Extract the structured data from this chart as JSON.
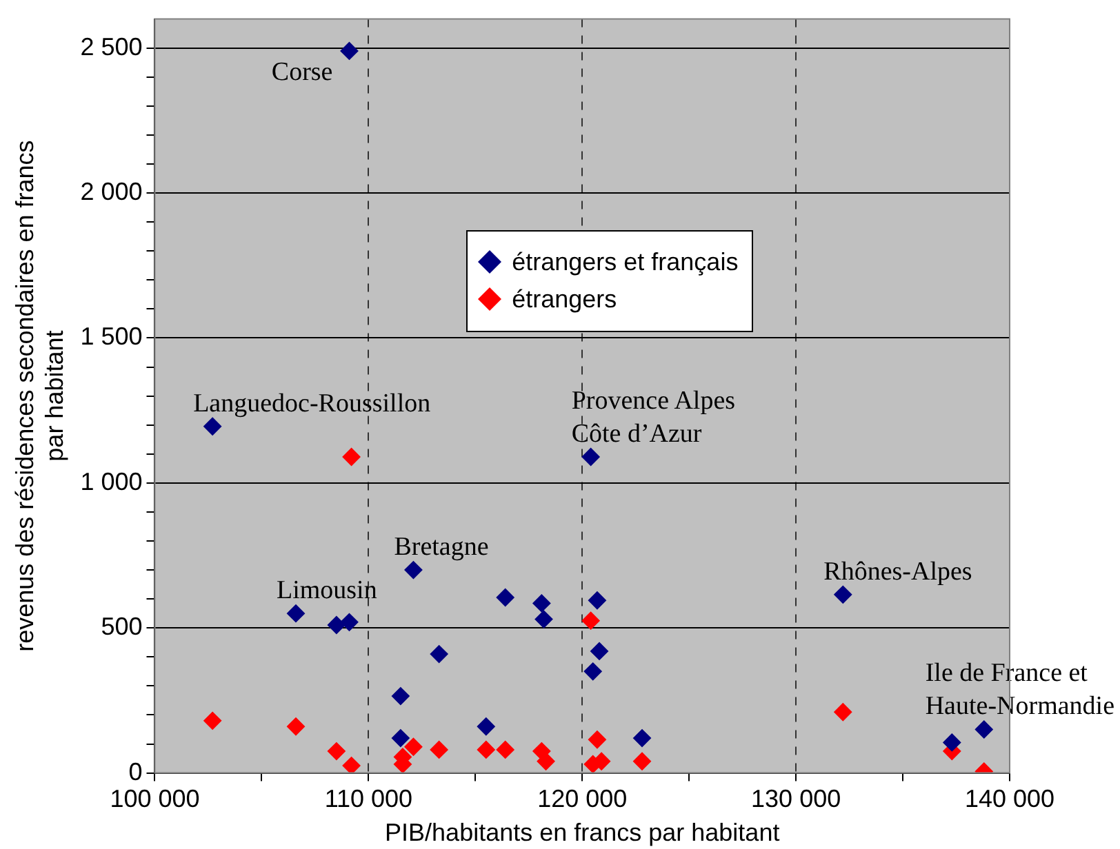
{
  "chart_data": {
    "type": "scatter",
    "xlabel": "PIB/habitants en francs par habitant",
    "ylabel": "revenus des résidences secondaires en francs par habitant",
    "xlim": [
      100000,
      140000
    ],
    "xticks": [
      {
        "value": 100000,
        "label": "100 000"
      },
      {
        "value": 105000,
        "label": null
      },
      {
        "value": 110000,
        "label": "110 000"
      },
      {
        "value": 115000,
        "label": null
      },
      {
        "value": 120000,
        "label": "120 000"
      },
      {
        "value": 125000,
        "label": null
      },
      {
        "value": 130000,
        "label": "130 000"
      },
      {
        "value": 135000,
        "label": null
      },
      {
        "value": 140000,
        "label": "140 000"
      }
    ],
    "ylim": [
      0,
      2600
    ],
    "yticks": [
      0,
      {
        "value": 100,
        "label": null
      },
      {
        "value": 200,
        "label": null
      },
      {
        "value": 300,
        "label": null
      },
      {
        "value": 400,
        "label": null
      },
      500,
      {
        "value": 600,
        "label": null
      },
      {
        "value": 700,
        "label": null
      },
      {
        "value": 800,
        "label": null
      },
      {
        "value": 900,
        "label": null
      },
      {
        "value": 1000,
        "label": "1 000"
      },
      {
        "value": 1100,
        "label": null
      },
      {
        "value": 1200,
        "label": null
      },
      {
        "value": 1300,
        "label": null
      },
      {
        "value": 1400,
        "label": null
      },
      {
        "value": 1500,
        "label": "1 500"
      },
      {
        "value": 1600,
        "label": null
      },
      {
        "value": 1700,
        "label": null
      },
      {
        "value": 1800,
        "label": null
      },
      {
        "value": 1900,
        "label": null
      },
      {
        "value": 2000,
        "label": "2 000"
      },
      {
        "value": 2100,
        "label": null
      },
      {
        "value": 2200,
        "label": null
      },
      {
        "value": 2300,
        "label": null
      },
      {
        "value": 2400,
        "label": null
      },
      {
        "value": 2500,
        "label": "2 500"
      }
    ],
    "grid": true,
    "legend": "top",
    "marker": "diamond",
    "series": [
      {
        "name": "étrangers et français",
        "color": "#000080",
        "x": [
          109100,
          102700,
          120400,
          112100,
          106600,
          108500,
          109100,
          116400,
          118100,
          118200,
          120700,
          113300,
          120800,
          120500,
          111500,
          111500,
          115500,
          122800,
          132200,
          137300,
          138800
        ],
        "values": [
          2490,
          1195,
          1090,
          700,
          550,
          510,
          520,
          605,
          585,
          530,
          595,
          410,
          420,
          350,
          265,
          120,
          160,
          120,
          615,
          105,
          150
        ]
      },
      {
        "name": "étrangers",
        "color": "#ff0000",
        "x": [
          102700,
          106600,
          108500,
          109200,
          109200,
          111600,
          111600,
          112100,
          113300,
          115500,
          116400,
          118100,
          118300,
          120400,
          120700,
          120500,
          120900,
          122800,
          132200,
          137300,
          138800
        ],
        "values": [
          180,
          160,
          75,
          25,
          1090,
          55,
          30,
          90,
          80,
          80,
          80,
          75,
          40,
          525,
          115,
          30,
          40,
          40,
          210,
          75,
          5
        ]
      }
    ],
    "annotations": [
      {
        "text": "Corse",
        "x": 109100,
        "y": 2490
      },
      {
        "text": "Languedoc-Roussillon",
        "x": 102700,
        "y": 1195
      },
      {
        "text": "Provence Alpes\nCôte d’Azur",
        "x": 120400,
        "y": 1090
      },
      {
        "text": "Bretagne",
        "x": 112100,
        "y": 700
      },
      {
        "text": "Limousin",
        "x": 106600,
        "y": 550
      },
      {
        "text": "Rhônes-Alpes",
        "x": 132200,
        "y": 615
      },
      {
        "text": "Ile de France et\nHaute-Normandie",
        "x": 138800,
        "y": 150
      }
    ]
  }
}
